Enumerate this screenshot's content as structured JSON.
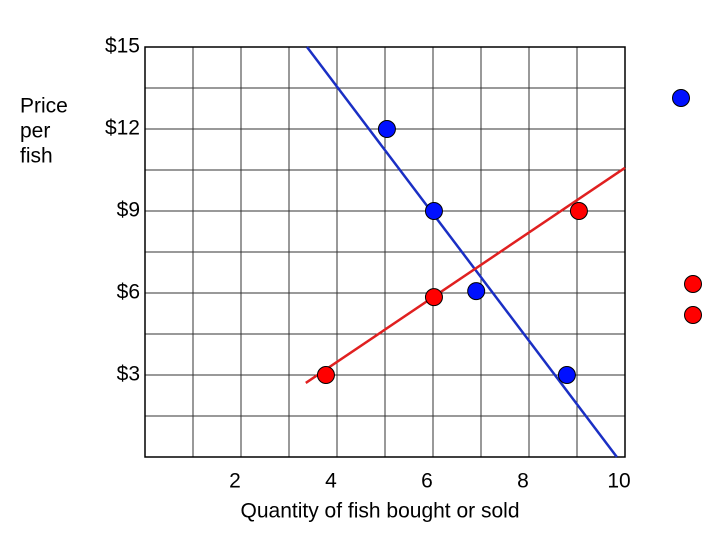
{
  "chart_data": {
    "type": "scatter",
    "xlabel": "Quantity of fish bought or sold",
    "ylabel": [
      "Price",
      "per",
      "fish"
    ],
    "xlim": [
      0,
      10
    ],
    "ylim": [
      0,
      15
    ],
    "xticks": [
      2,
      4,
      6,
      8,
      10
    ],
    "yticks": [
      {
        "value": 3,
        "label": "$3"
      },
      {
        "value": 6,
        "label": "$6"
      },
      {
        "value": 9,
        "label": "$9"
      },
      {
        "value": 12,
        "label": "$12"
      },
      {
        "value": 15,
        "label": "$15"
      }
    ],
    "xticks_minor": [
      1,
      3,
      5,
      7,
      9
    ],
    "yticks_minor": [
      1.5,
      4.5,
      7.5,
      10.5,
      13.5
    ],
    "grid": true,
    "series": [
      {
        "type": "line",
        "color": "#1a2fc4",
        "x": [
          3.375,
          9.83
        ],
        "values": [
          15,
          0
        ]
      },
      {
        "type": "line",
        "color": "#e02020",
        "x": [
          3.35,
          10
        ],
        "values": [
          2.71,
          10.58
        ]
      },
      {
        "type": "scatter",
        "color": "#0010ff",
        "x": [
          5.04,
          6.02,
          6.9,
          8.79
        ],
        "values": [
          12,
          9,
          6.07,
          3
        ]
      },
      {
        "type": "scatter",
        "color": "#ff0000",
        "x": [
          3.77,
          6.02,
          9.04
        ],
        "values": [
          3,
          5.85,
          9
        ]
      }
    ]
  }
}
